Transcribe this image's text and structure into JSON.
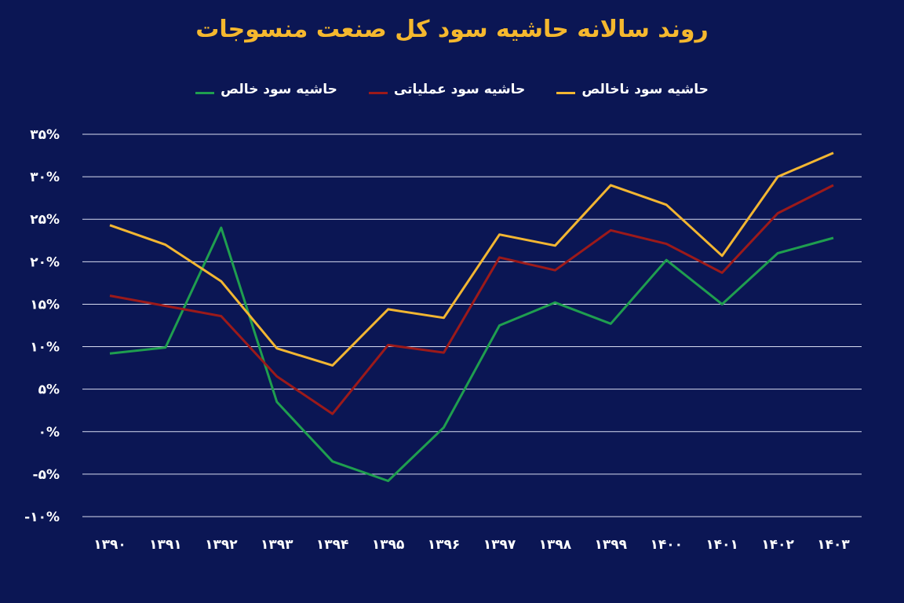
{
  "chart_data": {
    "type": "line",
    "title": "روند سالانه حاشیه سود کل صنعت منسوجات",
    "categories": [
      "۱۳۹۰",
      "۱۳۹۱",
      "۱۳۹۲",
      "۱۳۹۳",
      "۱۳۹۴",
      "۱۳۹۵",
      "۱۳۹۶",
      "۱۳۹۷",
      "۱۳۹۸",
      "۱۳۹۹",
      "۱۴۰۰",
      "۱۴۰۱",
      "۱۴۰۲",
      "۱۴۰۳"
    ],
    "y_tick_labels": [
      "-۱۰%",
      "-۵%",
      "۰%",
      "۵%",
      "۱۰%",
      "۱۵%",
      "۲۰%",
      "۲۵%",
      "۳۰%",
      "۳۵%"
    ],
    "y_ticks": [
      -10,
      -5,
      0,
      5,
      10,
      15,
      20,
      25,
      30,
      35
    ],
    "ylim": [
      -10,
      35
    ],
    "grid": true,
    "legend_position": "top",
    "series": [
      {
        "name": "حاشیه سود ناخالص",
        "color": "#f2b632",
        "values": [
          24.3,
          22.0,
          17.7,
          9.8,
          7.8,
          14.4,
          13.4,
          23.2,
          21.9,
          29.0,
          26.7,
          20.7,
          30.0,
          32.8
        ]
      },
      {
        "name": "حاشیه سود عملیاتی",
        "color": "#9c1a1a",
        "values": [
          16.0,
          14.8,
          13.6,
          6.5,
          2.1,
          10.2,
          9.3,
          20.5,
          19.0,
          23.7,
          22.1,
          18.7,
          25.7,
          29.0
        ]
      },
      {
        "name": "حاشیه سود خالص",
        "color": "#1f9e4f",
        "values": [
          9.2,
          9.9,
          24.0,
          3.5,
          -3.5,
          -5.8,
          0.5,
          12.5,
          15.2,
          12.7,
          20.2,
          15.0,
          21.0,
          22.8
        ]
      }
    ]
  }
}
